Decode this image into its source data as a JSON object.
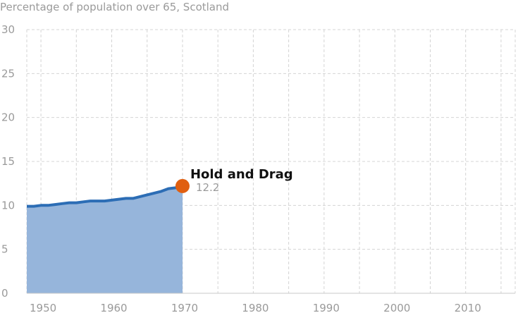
{
  "chart_data": {
    "type": "area",
    "title": "Percentage of population over 65, Scotland",
    "xlabel": "",
    "ylabel": "",
    "xlim": [
      1948,
      2017
    ],
    "ylim": [
      0,
      30
    ],
    "yticks": [
      0,
      5,
      10,
      15,
      20,
      25,
      30
    ],
    "xticks": [
      1950,
      1960,
      1970,
      1980,
      1990,
      2000,
      2010
    ],
    "grid": true,
    "series": [
      {
        "x": [
          1948,
          1949,
          1950,
          1951,
          1952,
          1953,
          1954,
          1955,
          1956,
          1957,
          1958,
          1959,
          1960,
          1961,
          1962,
          1963,
          1964,
          1965,
          1966,
          1967,
          1968,
          1969,
          1970
        ],
        "values": [
          9.9,
          9.9,
          10.0,
          10.0,
          10.1,
          10.2,
          10.3,
          10.3,
          10.4,
          10.5,
          10.5,
          10.5,
          10.6,
          10.7,
          10.8,
          10.8,
          11.0,
          11.2,
          11.4,
          11.6,
          11.9,
          12.0,
          12.2
        ]
      }
    ],
    "handle": {
      "x": 1970,
      "value": 12.2
    },
    "colors": {
      "line": "#2c6db5",
      "area": "#96b5db",
      "handle": "#e05f10"
    }
  },
  "labels": {
    "drag_hint": "Hold and Drag",
    "handle_value": "12.2"
  }
}
